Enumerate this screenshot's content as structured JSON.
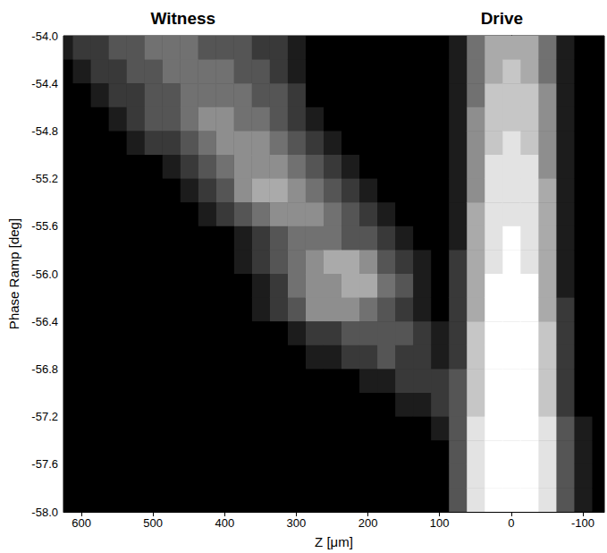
{
  "chart_data": {
    "type": "heatmap",
    "x_label": "Z [μm]",
    "y_label": "Phase Ramp [deg]",
    "annotations": [
      {
        "text": "Witness",
        "x": 458
      },
      {
        "text": "Drive",
        "x": 13
      }
    ],
    "xlim": [
      625,
      -130
    ],
    "xticks": [
      600,
      500,
      400,
      300,
      200,
      100,
      0,
      -100
    ],
    "ylim": [
      -58,
      -54
    ],
    "yticks": [
      {
        "value": -58,
        "label": "-58.0"
      },
      -57.6,
      -57.2,
      -56.8,
      -56.4,
      {
        "value": -56,
        "label": "-56.0"
      },
      -55.6,
      -55.2,
      -54.8,
      -54.4,
      {
        "value": -54,
        "label": "-54.0"
      }
    ],
    "colors": [
      "#000000",
      "#ffffff"
    ],
    "color_range": [
      0,
      9
    ],
    "grid": false,
    "z": [
      -125,
      -100,
      -75,
      -50,
      -25,
      0,
      25,
      50,
      75,
      100,
      125,
      150,
      175,
      200,
      225,
      250,
      275,
      300,
      325,
      350,
      375,
      400,
      425,
      450,
      475,
      500,
      525,
      550,
      575,
      600,
      625
    ],
    "phase": [
      -54.1,
      -54.3,
      -54.5,
      -54.7,
      -54.9,
      -55.1,
      -55.3,
      -55.5,
      -55.7,
      -55.9,
      -56.1,
      -56.3,
      -56.5,
      -56.7,
      -56.9,
      -57.1,
      -57.3,
      -57.5,
      -57.7,
      -57.9
    ],
    "intensity": [
      [
        0,
        0,
        1,
        4,
        6,
        6,
        6,
        4,
        1,
        0,
        0,
        0,
        0,
        0,
        0,
        0,
        0,
        1,
        2,
        2,
        3,
        3,
        3,
        4,
        4,
        4,
        3,
        3,
        2,
        2,
        1
      ],
      [
        0,
        0,
        1,
        4,
        6,
        7,
        6,
        4,
        1,
        0,
        0,
        0,
        0,
        0,
        0,
        0,
        0,
        1,
        2,
        3,
        3,
        4,
        4,
        4,
        4,
        3,
        3,
        2,
        2,
        1,
        0
      ],
      [
        0,
        0,
        1,
        5,
        7,
        7,
        7,
        4,
        1,
        0,
        0,
        0,
        0,
        0,
        0,
        0,
        0,
        2,
        3,
        3,
        4,
        4,
        4,
        4,
        3,
        3,
        2,
        2,
        1,
        0,
        0
      ],
      [
        0,
        0,
        1,
        5,
        7,
        7,
        7,
        5,
        1,
        0,
        0,
        0,
        0,
        0,
        0,
        0,
        1,
        2,
        3,
        4,
        4,
        5,
        5,
        4,
        3,
        3,
        2,
        1,
        0,
        0,
        0
      ],
      [
        0,
        0,
        1,
        5,
        7,
        8,
        7,
        5,
        1,
        0,
        0,
        0,
        0,
        0,
        0,
        1,
        2,
        3,
        4,
        5,
        5,
        5,
        4,
        3,
        2,
        2,
        1,
        0,
        0,
        0,
        0
      ],
      [
        0,
        0,
        1,
        5,
        8,
        8,
        8,
        5,
        1,
        0,
        0,
        0,
        0,
        0,
        1,
        2,
        3,
        4,
        5,
        5,
        5,
        4,
        3,
        2,
        1,
        0,
        0,
        0,
        0,
        0,
        0
      ],
      [
        0,
        0,
        1,
        6,
        8,
        8,
        8,
        5,
        1,
        0,
        0,
        0,
        0,
        1,
        2,
        3,
        4,
        5,
        6,
        6,
        5,
        3,
        2,
        1,
        0,
        0,
        0,
        0,
        0,
        0,
        0
      ],
      [
        0,
        0,
        1,
        6,
        8,
        8,
        8,
        6,
        1,
        0,
        0,
        0,
        1,
        2,
        3,
        4,
        5,
        5,
        5,
        4,
        3,
        2,
        1,
        0,
        0,
        0,
        0,
        0,
        0,
        0,
        0
      ],
      [
        0,
        0,
        1,
        6,
        8,
        9,
        8,
        6,
        1,
        0,
        0,
        1,
        2,
        3,
        3,
        4,
        4,
        4,
        3,
        2,
        1,
        0,
        0,
        0,
        0,
        0,
        0,
        0,
        0,
        0,
        0
      ],
      [
        0,
        0,
        1,
        6,
        8,
        9,
        8,
        6,
        2,
        0,
        1,
        2,
        3,
        5,
        6,
        6,
        5,
        4,
        3,
        2,
        1,
        0,
        0,
        0,
        0,
        0,
        0,
        0,
        0,
        0,
        0
      ],
      [
        0,
        0,
        1,
        6,
        9,
        9,
        9,
        6,
        2,
        0,
        1,
        3,
        4,
        6,
        6,
        5,
        5,
        4,
        2,
        1,
        0,
        0,
        0,
        0,
        0,
        0,
        0,
        0,
        0,
        0,
        0
      ],
      [
        0,
        0,
        2,
        6,
        9,
        9,
        9,
        6,
        2,
        0,
        1,
        2,
        3,
        4,
        5,
        5,
        5,
        3,
        2,
        1,
        0,
        0,
        0,
        0,
        0,
        0,
        0,
        0,
        0,
        0,
        0
      ],
      [
        0,
        0,
        2,
        7,
        9,
        9,
        9,
        7,
        2,
        1,
        2,
        3,
        3,
        3,
        3,
        2,
        2,
        1,
        0,
        0,
        0,
        0,
        0,
        0,
        0,
        0,
        0,
        0,
        0,
        0,
        0
      ],
      [
        0,
        0,
        2,
        7,
        9,
        9,
        9,
        7,
        2,
        1,
        2,
        2,
        3,
        2,
        2,
        1,
        1,
        0,
        0,
        0,
        0,
        0,
        0,
        0,
        0,
        0,
        0,
        0,
        0,
        0,
        0
      ],
      [
        0,
        0,
        2,
        7,
        9,
        9,
        9,
        7,
        3,
        2,
        2,
        2,
        1,
        1,
        0,
        0,
        0,
        0,
        0,
        0,
        0,
        0,
        0,
        0,
        0,
        0,
        0,
        0,
        0,
        0,
        0
      ],
      [
        0,
        0,
        2,
        7,
        9,
        9,
        9,
        7,
        3,
        2,
        1,
        1,
        0,
        0,
        0,
        0,
        0,
        0,
        0,
        0,
        0,
        0,
        0,
        0,
        0,
        0,
        0,
        0,
        0,
        0,
        0
      ],
      [
        0,
        1,
        3,
        8,
        9,
        9,
        9,
        8,
        3,
        1,
        0,
        0,
        0,
        0,
        0,
        0,
        0,
        0,
        0,
        0,
        0,
        0,
        0,
        0,
        0,
        0,
        0,
        0,
        0,
        0,
        0
      ],
      [
        0,
        1,
        3,
        8,
        9,
        9,
        9,
        8,
        3,
        0,
        0,
        0,
        0,
        0,
        0,
        0,
        0,
        0,
        0,
        0,
        0,
        0,
        0,
        0,
        0,
        0,
        0,
        0,
        0,
        0,
        0
      ],
      [
        0,
        1,
        3,
        8,
        9,
        9,
        9,
        8,
        3,
        0,
        0,
        0,
        0,
        0,
        0,
        0,
        0,
        0,
        0,
        0,
        0,
        0,
        0,
        0,
        0,
        0,
        0,
        0,
        0,
        0,
        0
      ],
      [
        0,
        1,
        3,
        8,
        9,
        9,
        9,
        8,
        3,
        0,
        0,
        0,
        0,
        0,
        0,
        0,
        0,
        0,
        0,
        0,
        0,
        0,
        0,
        0,
        0,
        0,
        0,
        0,
        0,
        0,
        0
      ]
    ]
  }
}
